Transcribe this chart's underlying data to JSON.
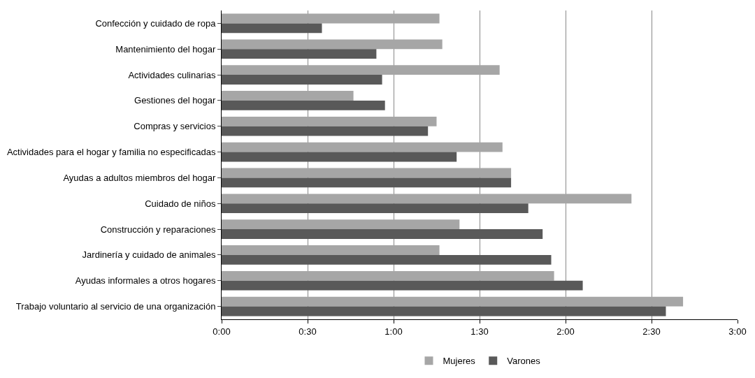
{
  "chart_data": {
    "type": "bar",
    "orientation": "horizontal",
    "categories": [
      "Confección y cuidado de ropa",
      "Mantenimiento del hogar",
      "Actividades culinarias",
      "Gestiones del hogar",
      "Compras y servicios",
      "Actividades para el hogar y familia no especificadas",
      "Ayudas a adultos miembros del hogar",
      "Cuidado de niños",
      "Construcción y reparaciones",
      "Jardinería y cuidado de animales",
      "Ayudas informales a otros hogares",
      "Trabajo voluntario al servicio de una organización"
    ],
    "series": [
      {
        "name": "Mujeres",
        "color": "#a6a6a6",
        "values": [
          76,
          77,
          97,
          46,
          75,
          98,
          101,
          143,
          83,
          76,
          116,
          161
        ]
      },
      {
        "name": "Varones",
        "color": "#595959",
        "values": [
          35,
          54,
          56,
          57,
          72,
          82,
          101,
          107,
          112,
          115,
          126,
          155
        ]
      }
    ],
    "xlim": [
      0,
      180
    ],
    "xticks": [
      {
        "value": 0,
        "label": "0:00"
      },
      {
        "value": 30,
        "label": "0:30"
      },
      {
        "value": 60,
        "label": "1:00"
      },
      {
        "value": 90,
        "label": "1:30"
      },
      {
        "value": 120,
        "label": "2:00"
      },
      {
        "value": 150,
        "label": "2:30"
      },
      {
        "value": 180,
        "label": "3:00"
      }
    ],
    "grid": "x",
    "legend": "bottom"
  }
}
